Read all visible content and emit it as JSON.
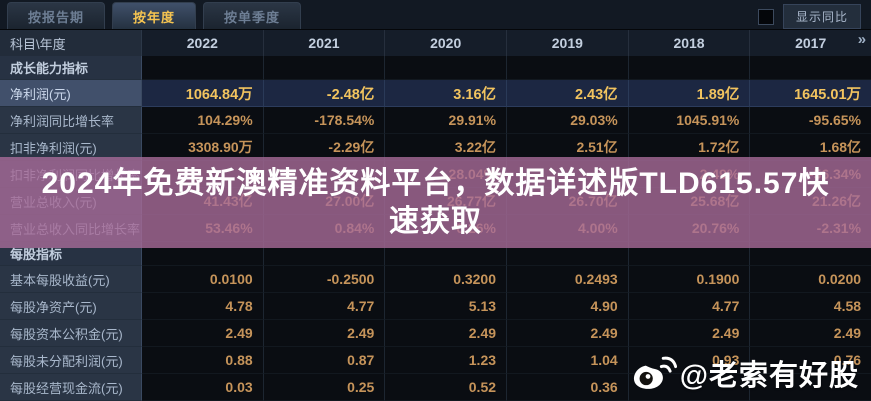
{
  "tabs": [
    {
      "name": "tab-by-report-period",
      "label": "按报告期",
      "active": false
    },
    {
      "name": "tab-by-year",
      "label": "按年度",
      "active": true
    },
    {
      "name": "tab-by-quarter",
      "label": "按单季度",
      "active": false
    }
  ],
  "controls": {
    "show_yoy_label": "显示同比",
    "more_icon": "»"
  },
  "table": {
    "corner_header": "科目\\年度",
    "years": [
      "2022",
      "2021",
      "2020",
      "2019",
      "2018",
      "2017"
    ],
    "sections": [
      {
        "title": "成长能力指标",
        "rows": [
          {
            "label": "净利润(元)",
            "highlighted": true,
            "values": [
              "1064.84万",
              "-2.48亿",
              "3.16亿",
              "2.43亿",
              "1.89亿",
              "1645.01万"
            ]
          },
          {
            "label": "净利润同比增长率",
            "highlighted": false,
            "values": [
              "104.29%",
              "-178.54%",
              "29.91%",
              "29.03%",
              "1045.91%",
              "-95.65%"
            ]
          },
          {
            "label": "扣非净利润(元)",
            "highlighted": false,
            "values": [
              "3308.90万",
              "-2.29亿",
              "3.22亿",
              "2.51亿",
              "1.72亿",
              "1.68亿"
            ]
          },
          {
            "label": "扣非净利润同比增长率",
            "highlighted": false,
            "values": [
              "",
              "",
              "28.04%",
              "",
              "2.49%",
              "-56.34%"
            ]
          },
          {
            "label": "营业总收入(元)",
            "highlighted": false,
            "values": [
              "41.43亿",
              "27.00亿",
              "26.77亿",
              "26.70亿",
              "25.68亿",
              "21.26亿"
            ]
          },
          {
            "label": "营业总收入同比增长率",
            "highlighted": false,
            "values": [
              "53.46%",
              "0.84%",
              "0.26%",
              "4.00%",
              "20.76%",
              "-2.31%"
            ]
          }
        ]
      },
      {
        "title": "每股指标",
        "rows": [
          {
            "label": "基本每股收益(元)",
            "highlighted": false,
            "values": [
              "0.0100",
              "-0.2500",
              "0.3200",
              "0.2493",
              "0.1900",
              "0.0200"
            ]
          },
          {
            "label": "每股净资产(元)",
            "highlighted": false,
            "values": [
              "4.78",
              "4.77",
              "5.13",
              "4.90",
              "4.77",
              "4.58"
            ]
          },
          {
            "label": "每股资本公积金(元)",
            "highlighted": false,
            "values": [
              "2.49",
              "2.49",
              "2.49",
              "2.49",
              "2.49",
              "2.49"
            ]
          },
          {
            "label": "每股未分配利润(元)",
            "highlighted": false,
            "values": [
              "0.88",
              "0.87",
              "1.23",
              "1.04",
              "0.93",
              "0.76"
            ]
          },
          {
            "label": "每股经营现金流(元)",
            "highlighted": false,
            "values": [
              "0.03",
              "0.25",
              "0.52",
              "0.36",
              "",
              ""
            ]
          }
        ]
      }
    ]
  },
  "watermark": {
    "line1": "2024年免费新澳精准资料平台，数据详述版TLD615.57快",
    "line2": "速获取",
    "full_text": "2024年免费新澳精准资料平台，数据详述版TLD615.57快速获取"
  },
  "weibo": {
    "handle": "@老索有好股"
  },
  "colors": {
    "active_tab_text": "#f5c451",
    "value_orange": "#c6945a",
    "highlight_value": "#f2c45f",
    "selected_row_bg": "#1c2742",
    "watermark_purple": "#a76c98",
    "label_column_bg": "#2a3545"
  }
}
